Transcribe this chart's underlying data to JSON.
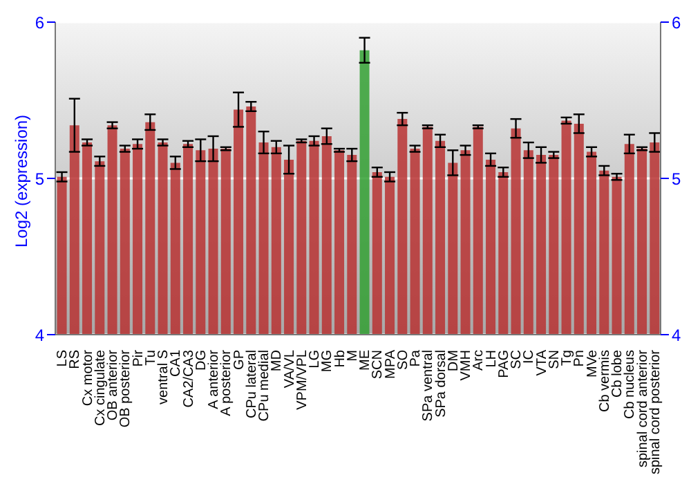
{
  "chart_data": {
    "type": "bar",
    "ylabel": "Log2 (expression)",
    "categories": [
      "LS",
      "RS",
      "Cx motor",
      "Cx cingulate",
      "OB anterior",
      "OB posterior",
      "Pir",
      "Tu",
      "ventral S",
      "CA1",
      "CA2/CA3",
      "DG",
      "A anterior",
      "A posterior",
      "GP",
      "CPu lateral",
      "CPu medial",
      "MD",
      "VA/VL",
      "VPM/VPL",
      "LG",
      "MG",
      "Hb",
      "M",
      "ME",
      "SCN",
      "MPA",
      "SO",
      "Pa",
      "SPa ventral",
      "SPa dorsal",
      "DM",
      "VMH",
      "Arc",
      "LH",
      "PAG",
      "SC",
      "IC",
      "VTA",
      "SN",
      "Tg",
      "Pn",
      "MVe",
      "Cb vermis",
      "Cb lobe",
      "Cb nucleus",
      "spinal cord anterior",
      "spinal cord posterior"
    ],
    "values": [
      5.01,
      5.34,
      5.23,
      5.11,
      5.34,
      5.19,
      5.22,
      5.36,
      5.23,
      5.1,
      5.22,
      5.18,
      5.19,
      5.19,
      5.44,
      5.46,
      5.23,
      5.2,
      5.12,
      5.24,
      5.24,
      5.27,
      5.18,
      5.15,
      5.82,
      5.04,
      5.01,
      5.38,
      5.19,
      5.33,
      5.24,
      5.1,
      5.18,
      5.33,
      5.12,
      5.04,
      5.32,
      5.18,
      5.15,
      5.15,
      5.37,
      5.35,
      5.17,
      5.05,
      5.01,
      5.22,
      5.19,
      5.23
    ],
    "errors": [
      0.03,
      0.17,
      0.02,
      0.03,
      0.02,
      0.02,
      0.03,
      0.05,
      0.02,
      0.04,
      0.02,
      0.07,
      0.08,
      0.01,
      0.11,
      0.03,
      0.07,
      0.04,
      0.09,
      0.01,
      0.03,
      0.05,
      0.01,
      0.04,
      0.08,
      0.03,
      0.03,
      0.04,
      0.02,
      0.01,
      0.04,
      0.08,
      0.03,
      0.01,
      0.04,
      0.03,
      0.06,
      0.05,
      0.05,
      0.02,
      0.02,
      0.06,
      0.03,
      0.03,
      0.02,
      0.06,
      0.01,
      0.06
    ],
    "colors": [
      "#b83232",
      "#b83232",
      "#b83232",
      "#b83232",
      "#b83232",
      "#b83232",
      "#b83232",
      "#b83232",
      "#b83232",
      "#b83232",
      "#b83232",
      "#b83232",
      "#b83232",
      "#b83232",
      "#b83232",
      "#b83232",
      "#b83232",
      "#b83232",
      "#b83232",
      "#b83232",
      "#b83232",
      "#b83232",
      "#b83232",
      "#b83232",
      "#33a033",
      "#b83232",
      "#b83232",
      "#b83232",
      "#b83232",
      "#b83232",
      "#b83232",
      "#b83232",
      "#b83232",
      "#b83232",
      "#b83232",
      "#b83232",
      "#b83232",
      "#b83232",
      "#b83232",
      "#b83232",
      "#b83232",
      "#b83232",
      "#b83232",
      "#b83232",
      "#b83232",
      "#b83232",
      "#b83232",
      "#b83232"
    ],
    "ylim": [
      4,
      6
    ],
    "yticks": [
      4,
      5,
      6
    ],
    "y2lim": [
      4,
      6
    ],
    "y2ticks": [
      4,
      5,
      6
    ],
    "grid": "y"
  }
}
